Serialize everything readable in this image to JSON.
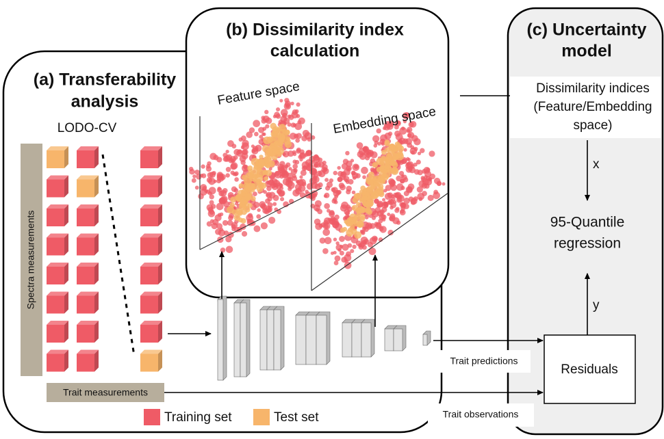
{
  "panel_a": {
    "title": [
      "(a) Transferability",
      "analysis"
    ],
    "method": "LODO-CV",
    "spectra_label": "Spectra measurements",
    "trait_label": "Trait measurements"
  },
  "panel_b": {
    "title": [
      "(b) Dissimilarity index",
      "calculation"
    ],
    "plots": [
      "Feature space",
      "Embedding space"
    ]
  },
  "panel_c": {
    "title": [
      "(c) Uncertainty",
      "model"
    ],
    "inputs": [
      "Dissimilarity indices",
      "(Feature/Embedding",
      "space)"
    ],
    "x_label": "x",
    "model": [
      "95-Quantile",
      "regression"
    ],
    "y_label": "y",
    "residuals": "Residuals"
  },
  "flows": {
    "predictions": "Trait predictions",
    "observations": "Trait observations"
  },
  "legend": [
    {
      "label": "Training set",
      "color": "#ef5b66"
    },
    {
      "label": "Test set",
      "color": "#f7b56b"
    }
  ]
}
